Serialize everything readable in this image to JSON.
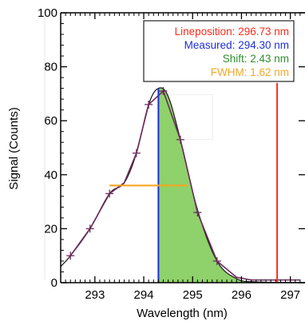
{
  "chart_data": {
    "type": "line",
    "xlabel": "Wavelength (nm)",
    "ylabel": "Signal (Counts)",
    "xlim": [
      292.3,
      297.3
    ],
    "ylim": [
      0,
      100
    ],
    "x_ticks": [
      293,
      294,
      295,
      296,
      297
    ],
    "y_ticks": [
      0,
      20,
      40,
      60,
      80,
      100
    ],
    "series": [
      {
        "points": [
          {
            "x": 292.5,
            "y": 10
          },
          {
            "x": 292.9,
            "y": 20
          },
          {
            "x": 293.3,
            "y": 33
          },
          {
            "x": 293.6,
            "y": 37
          },
          {
            "x": 293.85,
            "y": 48
          },
          {
            "x": 294.1,
            "y": 66
          },
          {
            "x": 294.4,
            "y": 71
          },
          {
            "x": 294.75,
            "y": 53
          },
          {
            "x": 295.1,
            "y": 26
          },
          {
            "x": 295.5,
            "y": 8
          },
          {
            "x": 295.9,
            "y": 2
          },
          {
            "x": 296.2,
            "y": 1
          },
          {
            "x": 296.5,
            "y": 1
          },
          {
            "x": 296.8,
            "y": 1
          },
          {
            "x": 297.2,
            "y": 1
          }
        ]
      },
      {
        "points": [
          {
            "x": 292.3,
            "y": 6
          },
          {
            "x": 292.5,
            "y": 10
          },
          {
            "x": 292.9,
            "y": 20
          },
          {
            "x": 293.3,
            "y": 33
          },
          {
            "x": 293.6,
            "y": 37
          },
          {
            "x": 293.85,
            "y": 48
          },
          {
            "x": 294.1,
            "y": 66
          },
          {
            "x": 294.3,
            "y": 72
          },
          {
            "x": 294.5,
            "y": 69
          },
          {
            "x": 294.75,
            "y": 53
          },
          {
            "x": 295.1,
            "y": 27
          },
          {
            "x": 295.5,
            "y": 8
          },
          {
            "x": 295.9,
            "y": 1.5
          },
          {
            "x": 296.3,
            "y": 0.3
          },
          {
            "x": 297.3,
            "y": 0
          }
        ]
      }
    ],
    "markers": [
      {
        "x": 292.5,
        "y": 10
      },
      {
        "x": 292.9,
        "y": 20
      },
      {
        "x": 293.3,
        "y": 33
      },
      {
        "x": 293.85,
        "y": 48
      },
      {
        "x": 294.1,
        "y": 66
      },
      {
        "x": 294.4,
        "y": 71
      },
      {
        "x": 294.75,
        "y": 53
      },
      {
        "x": 295.1,
        "y": 26
      },
      {
        "x": 295.5,
        "y": 8
      }
    ],
    "shaded_region": {
      "from_x": 294.3,
      "color": "#8fd16a"
    },
    "measured_line": {
      "x": 294.3,
      "color": "#1f2fd6"
    },
    "lineposition_line": {
      "x": 296.73,
      "color": "#ff2a1a"
    },
    "fwhm_bar": {
      "x1": 293.3,
      "x2": 294.9,
      "y": 36,
      "color": "#f5a623"
    },
    "legend": {
      "placement": "top-right",
      "entries": [
        {
          "text": "Lineposition: 296.73 nm",
          "color": "#ff2a1a"
        },
        {
          "text": "Measured: 294.30 nm",
          "color": "#1f2fd6"
        },
        {
          "text": "Shift: 2.43 nm",
          "color": "#2f8f2f"
        },
        {
          "text": "FWHM: 1.62 nm",
          "color": "#f5a623"
        }
      ]
    },
    "colors": {
      "curve": "#6b2a5c",
      "fit": "#222222"
    }
  }
}
